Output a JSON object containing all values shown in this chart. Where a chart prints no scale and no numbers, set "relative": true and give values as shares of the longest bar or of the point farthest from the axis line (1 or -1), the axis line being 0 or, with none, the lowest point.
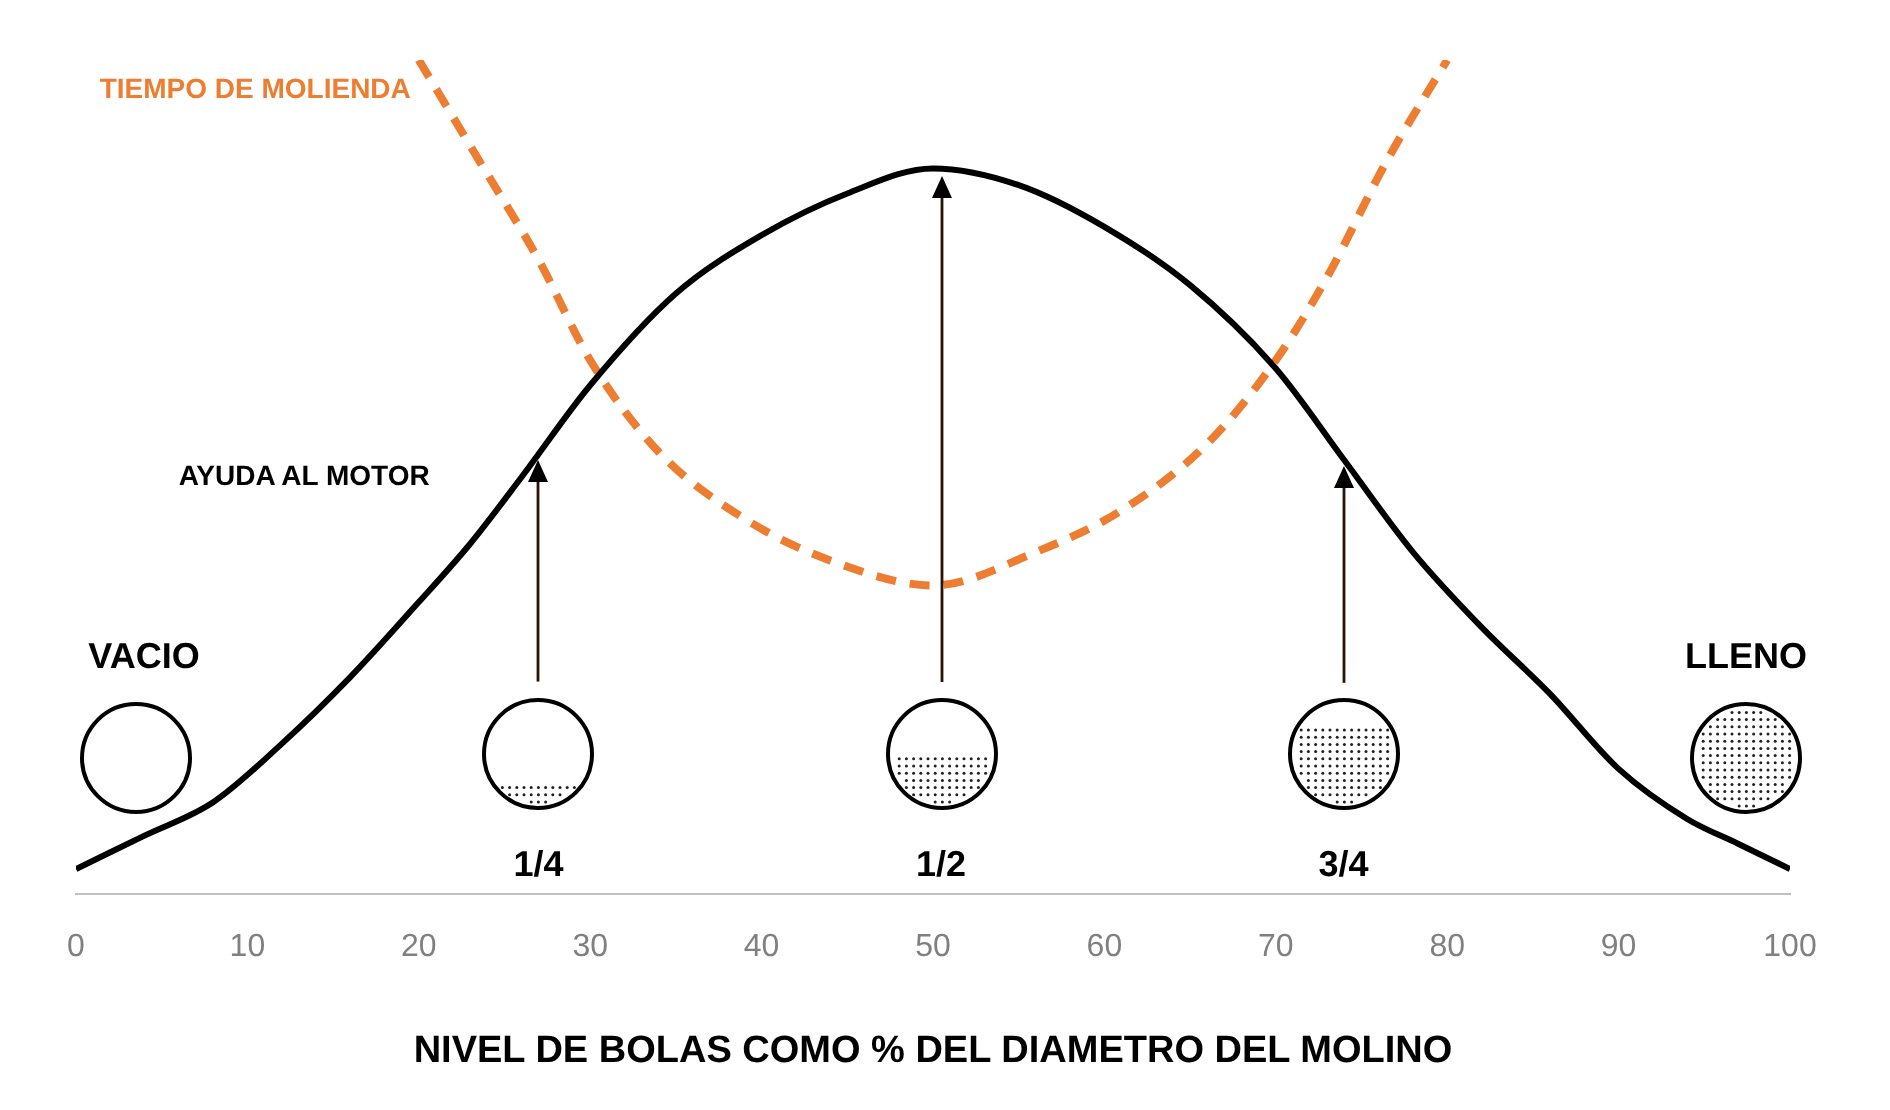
{
  "chart_data": {
    "type": "line",
    "relative": true,
    "xlabel": "NIVEL DE BOLAS COMO % DEL DIAMETRO DEL MOLINO",
    "xlim": [
      0,
      100
    ],
    "xticks": [
      0,
      10,
      20,
      30,
      40,
      50,
      60,
      70,
      80,
      90,
      100
    ],
    "grid": false,
    "legend": false,
    "series": [
      {
        "name": "AYUDA AL MOTOR",
        "color": "#000000",
        "line_style": "solid",
        "x": [
          0,
          4,
          8,
          12,
          16,
          20,
          23,
          26,
          30,
          35,
          40,
          45,
          50,
          55,
          60,
          65,
          70,
          74,
          78,
          82,
          86,
          90,
          94,
          97,
          100
        ],
        "values": [
          0.03,
          0.07,
          0.11,
          0.18,
          0.26,
          0.35,
          0.42,
          0.5,
          0.61,
          0.72,
          0.79,
          0.84,
          0.87,
          0.85,
          0.8,
          0.73,
          0.63,
          0.52,
          0.41,
          0.32,
          0.24,
          0.15,
          0.09,
          0.06,
          0.03
        ]
      },
      {
        "name": "TIEMPO DE MOLIENDA",
        "color": "#ed7d31",
        "line_style": "dashed",
        "x": [
          20,
          23.5,
          27,
          30,
          34,
          39,
          44,
          50,
          56,
          61,
          66,
          70,
          73,
          76.5,
          80
        ],
        "values": [
          1.0,
          0.88,
          0.76,
          0.64,
          0.53,
          0.45,
          0.4,
          0.37,
          0.41,
          0.46,
          0.54,
          0.64,
          0.74,
          0.88,
          1.0
        ]
      }
    ],
    "annotations": [
      "VACIO",
      "1/4",
      "1/2",
      "3/4",
      "LLENO"
    ]
  }
}
